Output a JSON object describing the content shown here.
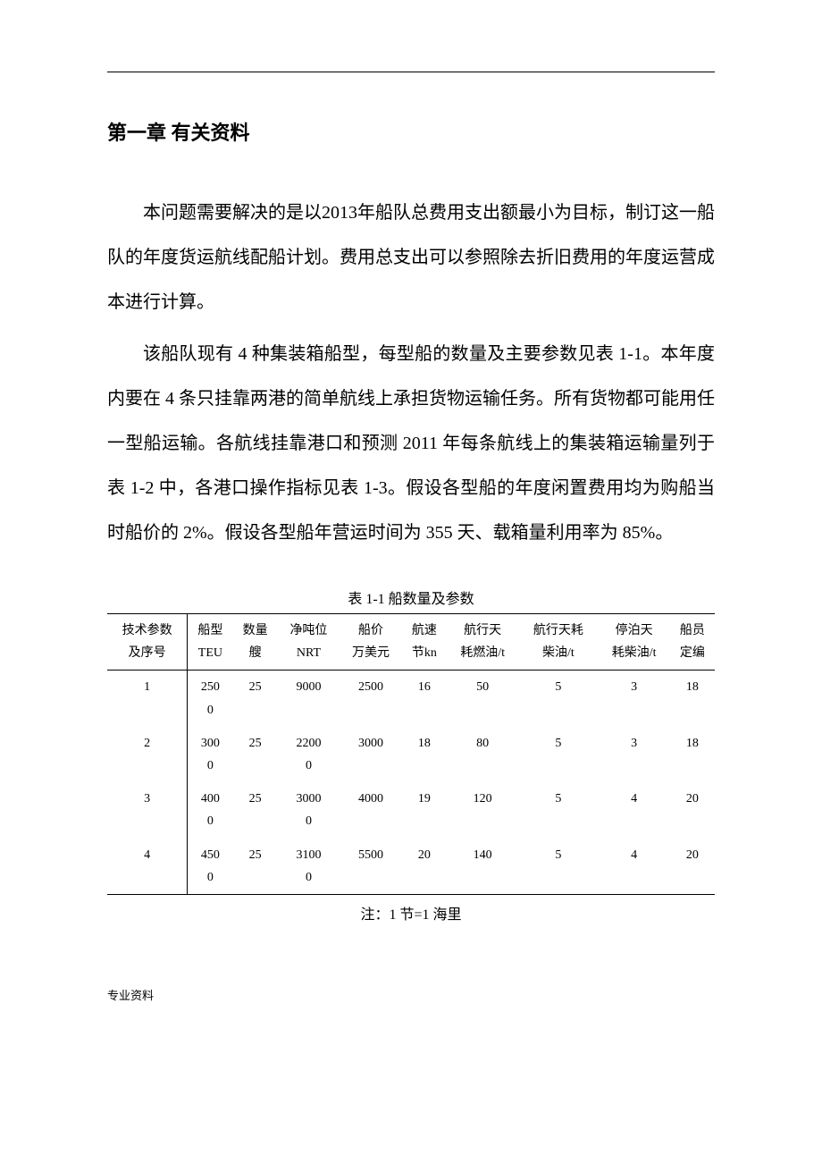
{
  "chapter_title": "第一章 有关资料",
  "paragraph1": "本问题需要解决的是以2013年船队总费用支出额最小为目标，制订这一船队的年度货运航线配船计划。费用总支出可以参照除去折旧费用的年度运营成本进行计算。",
  "paragraph2": "该船队现有 4 种集装箱船型，每型船的数量及主要参数见表 1-1。本年度内要在 4 条只挂靠两港的简单航线上承担货物运输任务。所有货物都可能用任一型船运输。各航线挂靠港口和预测 2011 年每条航线上的集装箱运输量列于表 1-2 中，各港口操作指标见表 1-3。假设各型船的年度闲置费用均为购船当时船价的 2%。假设各型船年营运时间为 355 天、载箱量利用率为 85%。",
  "table": {
    "caption": "表 1-1 船数量及参数",
    "headers": [
      "技术参数及序号",
      "船型TEU",
      "数量艘",
      "净吨位NRT",
      "船价万美元",
      "航速节kn",
      "航行天耗燃油/t",
      "航行天耗柴油/t",
      "停泊天耗柴油/t",
      "船员定编"
    ],
    "header_lines": [
      [
        "技术参数",
        "船型",
        "数量",
        "净吨位",
        "船价",
        "航速",
        "航行天",
        "航行天耗",
        "停泊天",
        "船员"
      ],
      [
        "及序号",
        "TEU",
        "艘",
        "NRT",
        "万美元",
        "节kn",
        "耗燃油/t",
        "柴油/t",
        "耗柴油/t",
        "定编"
      ]
    ],
    "rows": [
      [
        "1",
        "2500",
        "25",
        "9000",
        "2500",
        "16",
        "50",
        "5",
        "3",
        "18"
      ],
      [
        "2",
        "3000",
        "25",
        "22000",
        "3000",
        "18",
        "80",
        "5",
        "3",
        "18"
      ],
      [
        "3",
        "4000",
        "25",
        "30000",
        "4000",
        "19",
        "120",
        "5",
        "4",
        "20"
      ],
      [
        "4",
        "4500",
        "25",
        "31000",
        "5500",
        "20",
        "140",
        "5",
        "4",
        "20"
      ]
    ],
    "rows_display": [
      [
        [
          "1"
        ],
        [
          "250",
          "0"
        ],
        [
          "25"
        ],
        [
          "9000"
        ],
        [
          "2500"
        ],
        [
          "16"
        ],
        [
          "50"
        ],
        [
          "5"
        ],
        [
          "3"
        ],
        [
          "18"
        ]
      ],
      [
        [
          "2"
        ],
        [
          "300",
          "0"
        ],
        [
          "25"
        ],
        [
          "2200",
          "0"
        ],
        [
          "3000"
        ],
        [
          "18"
        ],
        [
          "80"
        ],
        [
          "5"
        ],
        [
          "3"
        ],
        [
          "18"
        ]
      ],
      [
        [
          "3"
        ],
        [
          "400",
          "0"
        ],
        [
          "25"
        ],
        [
          "3000",
          "0"
        ],
        [
          "4000"
        ],
        [
          "19"
        ],
        [
          "120"
        ],
        [
          "5"
        ],
        [
          "4"
        ],
        [
          "20"
        ]
      ],
      [
        [
          "4"
        ],
        [
          "450",
          "0"
        ],
        [
          "25"
        ],
        [
          "3100",
          "0"
        ],
        [
          "5500"
        ],
        [
          "20"
        ],
        [
          "140"
        ],
        [
          "5"
        ],
        [
          "4"
        ],
        [
          "20"
        ]
      ]
    ],
    "note": "注：1 节=1 海里"
  },
  "footer": "专业资料",
  "colors": {
    "text": "#000000",
    "background": "#ffffff",
    "rule": "#000000"
  },
  "typography": {
    "title_fontsize": 22,
    "body_fontsize": 20,
    "table_fontsize": 14,
    "caption_fontsize": 16
  }
}
